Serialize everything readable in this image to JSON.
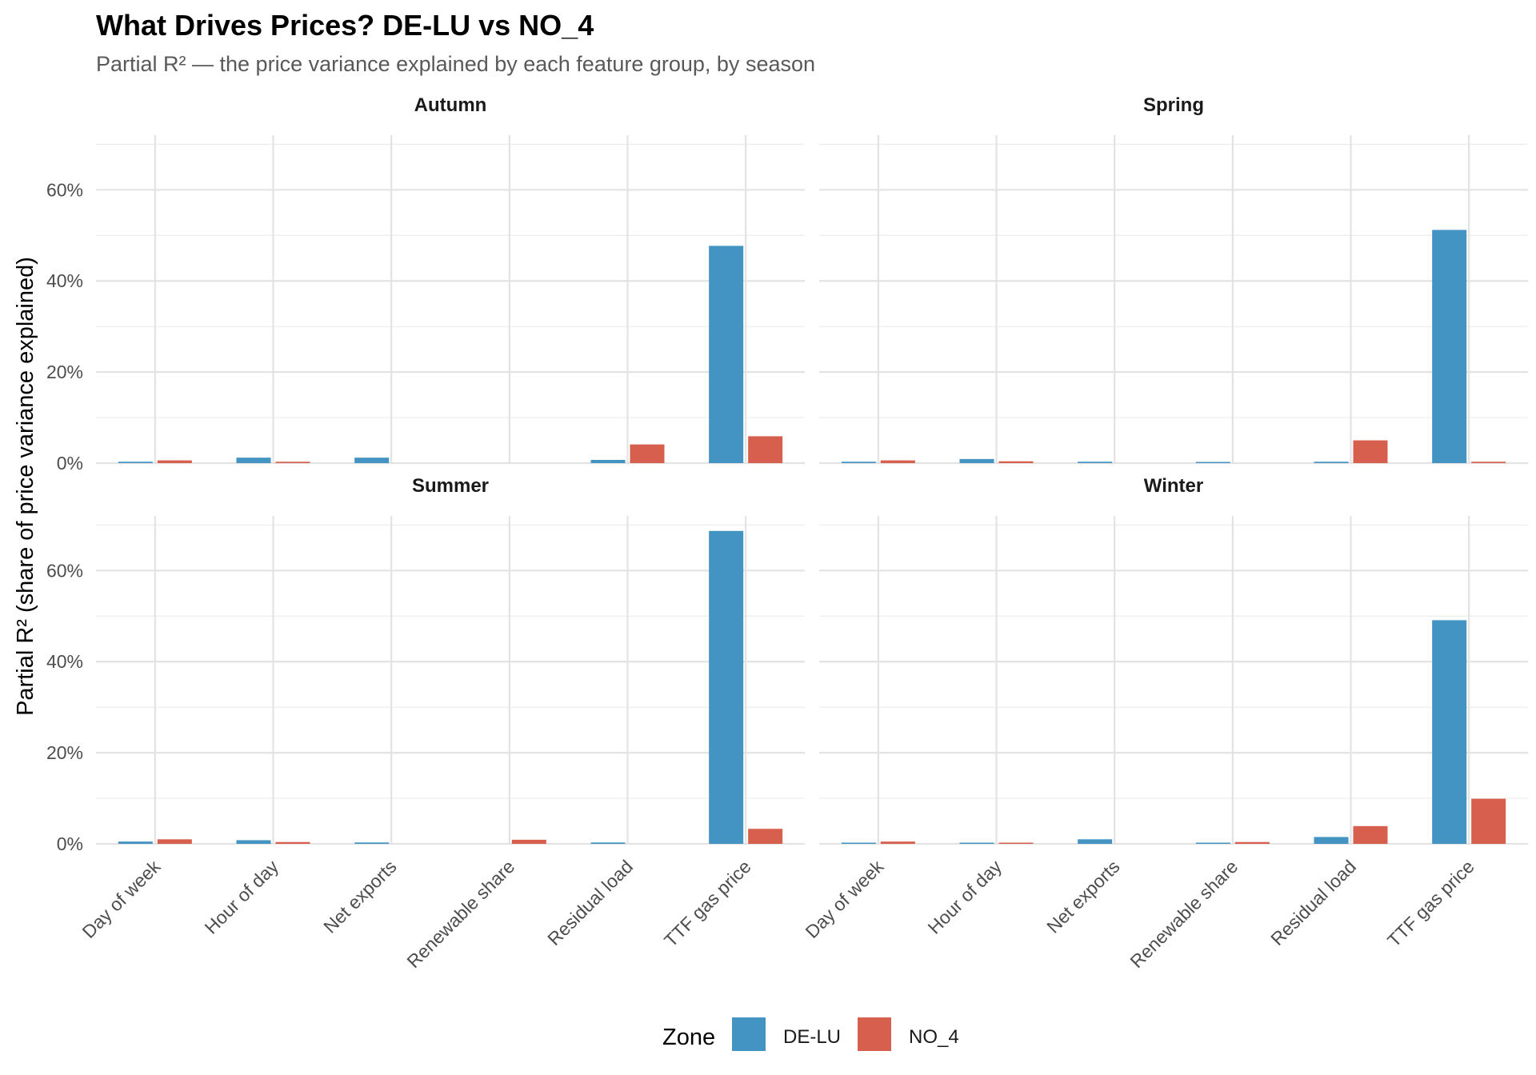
{
  "chart_data": {
    "type": "bar",
    "title": "What Drives Prices? DE-LU vs NO_4",
    "subtitle": "Partial R² — the price variance explained by each feature group, by season",
    "ylabel": "Partial R² (share of price variance explained)",
    "ylim": [
      0,
      0.72
    ],
    "yticks": [
      0,
      0.2,
      0.4,
      0.6
    ],
    "ytick_labels": [
      "0%",
      "20%",
      "40%",
      "60%"
    ],
    "categories": [
      "Day of week",
      "Hour of day",
      "Net exports",
      "Renewable share",
      "Residual load",
      "TTF gas price"
    ],
    "legend": {
      "title": "Zone",
      "position": "bottom"
    },
    "series_meta": [
      {
        "name": "DE-LU",
        "color": "#4393c3"
      },
      {
        "name": "NO_4",
        "color": "#d6604d"
      }
    ],
    "panels": [
      {
        "name": "Autumn",
        "series": [
          {
            "name": "DE-LU",
            "values": [
              0.003,
              0.012,
              0.012,
              null,
              0.007,
              0.477
            ]
          },
          {
            "name": "NO_4",
            "values": [
              0.006,
              0.003,
              null,
              null,
              0.041,
              0.059
            ]
          }
        ]
      },
      {
        "name": "Spring",
        "series": [
          {
            "name": "DE-LU",
            "values": [
              0.003,
              0.009,
              0.003,
              0.002,
              0.003,
              0.512
            ]
          },
          {
            "name": "NO_4",
            "values": [
              0.006,
              0.004,
              null,
              null,
              0.05,
              0.003
            ]
          }
        ]
      },
      {
        "name": "Summer",
        "series": [
          {
            "name": "DE-LU",
            "values": [
              0.005,
              0.008,
              0.003,
              null,
              0.003,
              0.687
            ]
          },
          {
            "name": "NO_4",
            "values": [
              0.01,
              0.004,
              null,
              0.009,
              null,
              0.033
            ]
          }
        ]
      },
      {
        "name": "Winter",
        "series": [
          {
            "name": "DE-LU",
            "values": [
              0.002,
              0.002,
              0.01,
              0.002,
              0.015,
              0.491
            ]
          },
          {
            "name": "NO_4",
            "values": [
              0.005,
              0.002,
              null,
              0.004,
              0.039,
              0.099
            ]
          }
        ]
      }
    ]
  }
}
